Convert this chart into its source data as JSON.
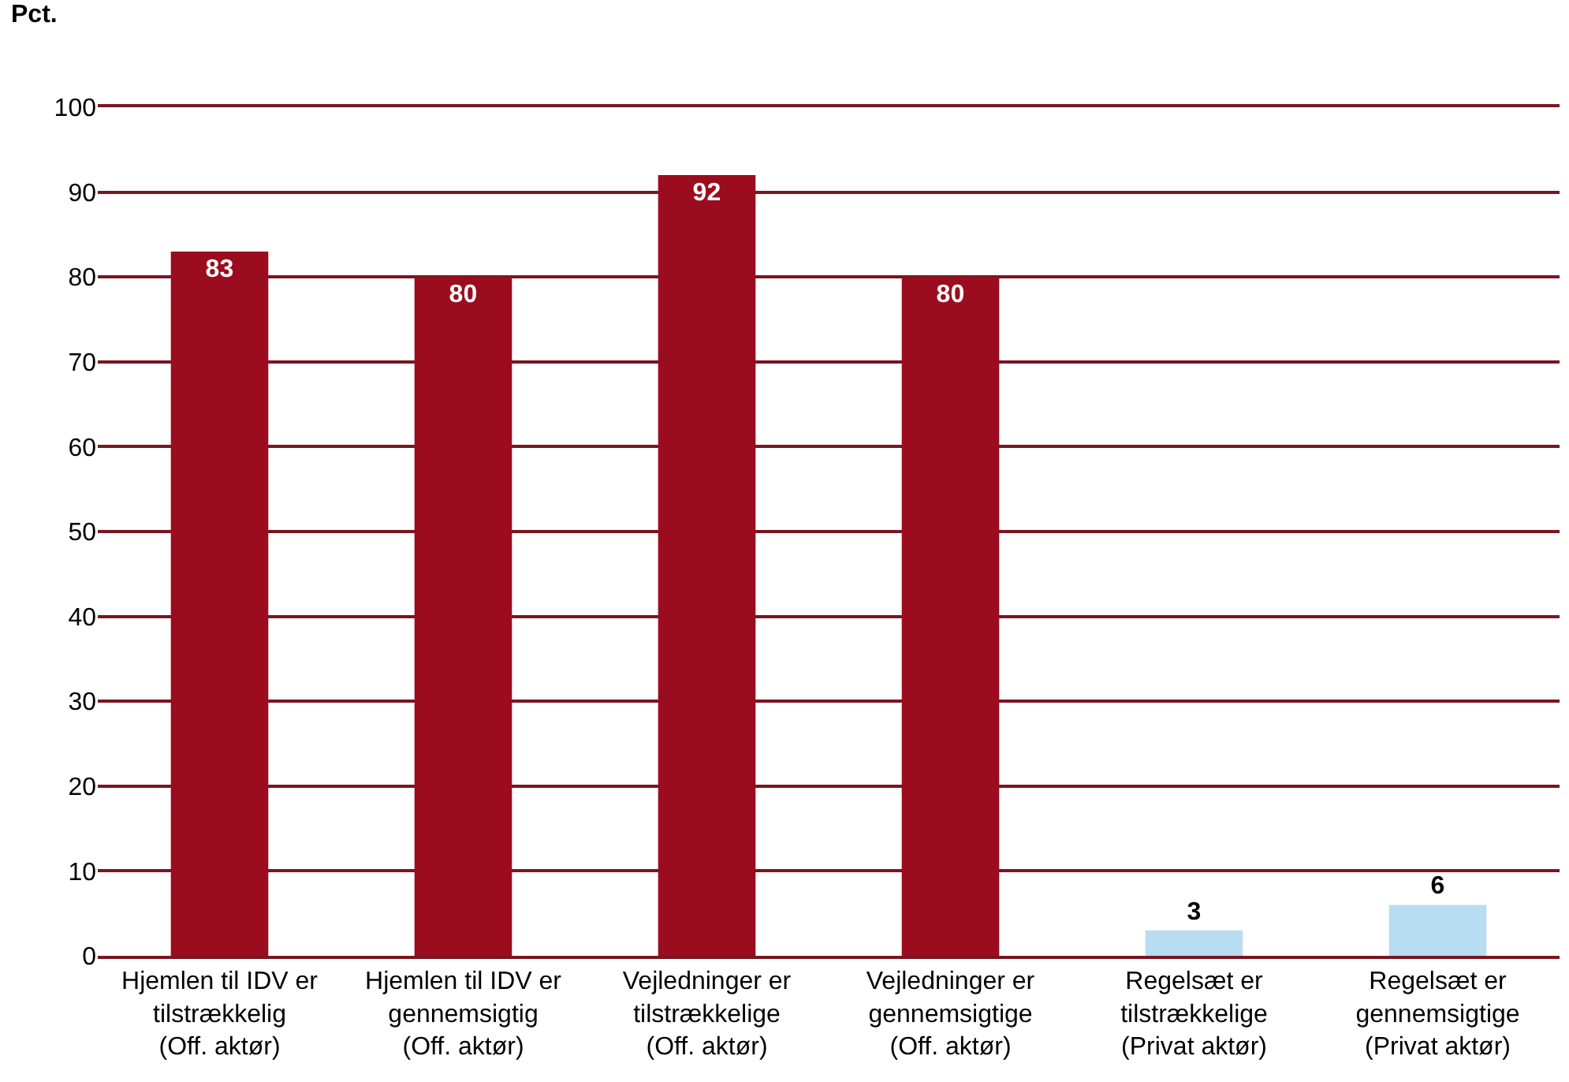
{
  "chart_data": {
    "type": "bar",
    "ylabel": "Pct.",
    "categories": [
      "Hjemlen til IDV er tilstrækkelig (Off. aktør)",
      "Hjemlen til IDV er gennemsigtig (Off. aktør)",
      "Vejledninger er tilstrækkelige (Off. aktør)",
      "Vejledninger er gennemsigtige (Off. aktør)",
      "Regelsæt er tilstrækkelige (Privat aktør)",
      "Regelsæt er gennemsigtige (Privat aktør)"
    ],
    "values": [
      83,
      80,
      92,
      80,
      3,
      6
    ],
    "colors": [
      "#9b0c1f",
      "#9b0c1f",
      "#9b0c1f",
      "#9b0c1f",
      "#b8dcf2",
      "#b8dcf2"
    ],
    "ylim": [
      0,
      100
    ],
    "yticks": [
      0,
      10,
      20,
      30,
      40,
      50,
      60,
      70,
      80,
      90,
      100
    ],
    "grid": "y",
    "data_labels": true
  }
}
